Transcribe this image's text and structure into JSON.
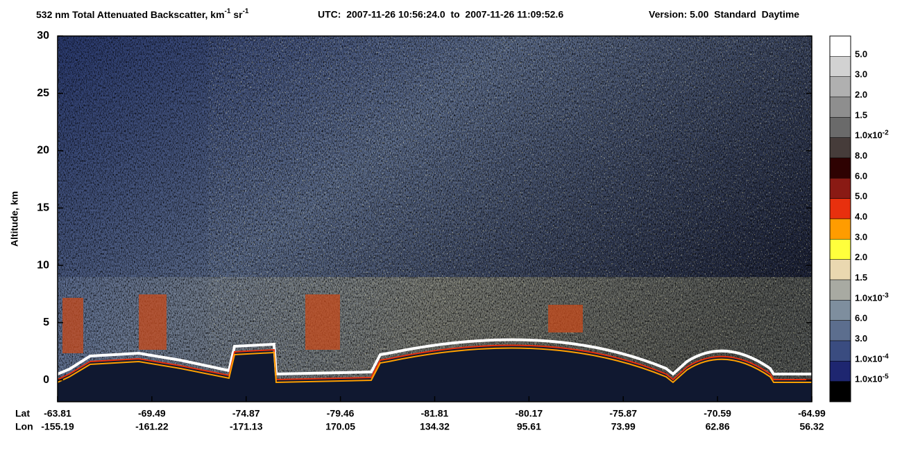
{
  "chart_data": {
    "type": "curtain",
    "title_segments": [
      "532 nm Total Attenuated Backscatter, km",
      "-1",
      " sr",
      "-1"
    ],
    "time_range": "UTC:  2007-11-26 10:56:24.0  to  2007-11-26 11:09:52.6",
    "version": "Version: 5.00  Standard  Daytime",
    "ylabel": "Altitude, km",
    "ylim": [
      -1.9,
      30
    ],
    "yticks": [
      0,
      5,
      10,
      15,
      20,
      25,
      30
    ],
    "row_labels": [
      "Lat",
      "Lon"
    ],
    "categories": [
      "-63.81",
      "-69.49",
      "-74.87",
      "-79.46",
      "-81.81",
      "-80.17",
      "-75.87",
      "-70.59",
      "-64.99"
    ],
    "lon": [
      "-155.19",
      "-161.22",
      "-171.13",
      "170.05",
      "134.32",
      "95.61",
      "73.99",
      "62.86",
      "56.32"
    ],
    "colorbar": {
      "colors": [
        "#ffffff",
        "#d2d2d2",
        "#b0b0b0",
        "#8e8e8e",
        "#6a6a6a",
        "#463c3a",
        "#2e0202",
        "#8a1a14",
        "#e8300e",
        "#ff9c00",
        "#ffff3c",
        "#ead8b0",
        "#a8aaa2",
        "#7e8e9e",
        "#5c6e8e",
        "#3a4c80",
        "#1e2670",
        "#000000"
      ],
      "labels": [
        {
          "base": "5.0"
        },
        {
          "base": "3.0"
        },
        {
          "base": "2.0"
        },
        {
          "base": "1.5"
        },
        {
          "base": "1.0x10",
          "exp": "-2"
        },
        {
          "base": "8.0"
        },
        {
          "base": "6.0"
        },
        {
          "base": "5.0"
        },
        {
          "base": "4.0"
        },
        {
          "base": "3.0"
        },
        {
          "base": "2.0"
        },
        {
          "base": "1.5"
        },
        {
          "base": "1.0x10",
          "exp": "-3"
        },
        {
          "base": "6.0"
        },
        {
          "base": "3.0"
        },
        {
          "base": "1.0x10",
          "exp": "-4"
        },
        {
          "base": "1.0x10",
          "exp": "-5"
        }
      ]
    }
  }
}
